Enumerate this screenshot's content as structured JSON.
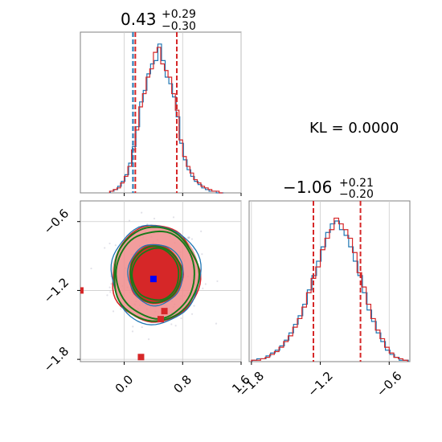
{
  "annotation": "KL = 0.0000",
  "titles": {
    "param1": {
      "value": "0.43",
      "plus": "+0.29",
      "minus": "−0.30"
    },
    "param2": {
      "value": "−1.06",
      "plus": "+0.21",
      "minus": "−0.20"
    }
  },
  "colors": {
    "red": "#d62728",
    "blue": "#1f77b4",
    "green": "#1a7a1a",
    "light_red": "#f08c8c",
    "dark_red": "#d62728",
    "truth_blue": "#0000ff",
    "grid": "#cccccc"
  },
  "chart_data": {
    "type": "corner",
    "axes": {
      "param1": {
        "range": [
          -0.6,
          1.6
        ],
        "ticks": [
          0.0,
          0.8,
          1.6
        ],
        "tick_labels": [
          "0.0",
          "0.8",
          "1.6"
        ]
      },
      "param2": {
        "range": [
          -1.82,
          -0.42
        ],
        "ticks": [
          -1.8,
          -1.2,
          -0.6
        ],
        "tick_labels": [
          "−1.8",
          "−1.2",
          "−0.6"
        ]
      }
    },
    "marginal_param1": {
      "median": 0.43,
      "q_low": 0.13,
      "q_high": 0.72,
      "q_low_blue": 0.12,
      "bins": [
        -0.2,
        -0.15,
        -0.1,
        -0.05,
        0.0,
        0.05,
        0.1,
        0.15,
        0.2,
        0.25,
        0.3,
        0.35,
        0.4,
        0.45,
        0.5,
        0.55,
        0.6,
        0.65,
        0.7,
        0.75,
        0.8,
        0.85,
        0.9,
        0.95,
        1.0,
        1.05,
        1.1,
        1.15,
        1.2,
        1.25,
        1.3
      ],
      "red": [
        1,
        2,
        3,
        6,
        10,
        16,
        26,
        38,
        52,
        60,
        70,
        75,
        85,
        88,
        78,
        74,
        70,
        60,
        50,
        32,
        22,
        16,
        12,
        8,
        6,
        4,
        3,
        2,
        1,
        1,
        0
      ],
      "blue": [
        1,
        2,
        4,
        7,
        11,
        18,
        28,
        40,
        55,
        62,
        72,
        78,
        80,
        90,
        80,
        70,
        66,
        58,
        46,
        30,
        20,
        14,
        10,
        7,
        5,
        3,
        2,
        1,
        1,
        0,
        0
      ]
    },
    "marginal_param2": {
      "median": -1.06,
      "q_low": -1.26,
      "q_high": -0.85,
      "bins": [
        -1.8,
        -1.76,
        -1.72,
        -1.68,
        -1.64,
        -1.6,
        -1.56,
        -1.52,
        -1.48,
        -1.44,
        -1.4,
        -1.36,
        -1.32,
        -1.28,
        -1.24,
        -1.2,
        -1.16,
        -1.12,
        -1.08,
        -1.04,
        -1.0,
        -0.96,
        -0.92,
        -0.88,
        -0.84,
        -0.8,
        -0.76,
        -0.72,
        -0.68,
        -0.64,
        -0.6,
        -0.56,
        -0.52,
        -0.48
      ],
      "red": [
        1,
        1,
        2,
        3,
        5,
        7,
        10,
        14,
        18,
        24,
        30,
        38,
        48,
        58,
        66,
        78,
        86,
        92,
        100,
        96,
        92,
        86,
        76,
        62,
        52,
        40,
        30,
        22,
        16,
        10,
        6,
        3,
        2,
        1
      ],
      "blue": [
        1,
        2,
        2,
        4,
        6,
        8,
        11,
        15,
        20,
        26,
        32,
        40,
        50,
        60,
        70,
        80,
        90,
        96,
        98,
        92,
        88,
        80,
        70,
        60,
        48,
        36,
        28,
        20,
        14,
        8,
        5,
        3,
        1,
        1
      ]
    },
    "joint": {
      "center": [
        0.43,
        -1.06
      ],
      "sigma": [
        0.29,
        0.205
      ],
      "truth_point": [
        0.4,
        -1.1
      ],
      "outlier_points": [
        [
          -0.6,
          -1.2
        ],
        [
          0.23,
          -1.78
        ],
        [
          0.5,
          -1.45
        ],
        [
          0.55,
          -1.38
        ]
      ]
    }
  }
}
